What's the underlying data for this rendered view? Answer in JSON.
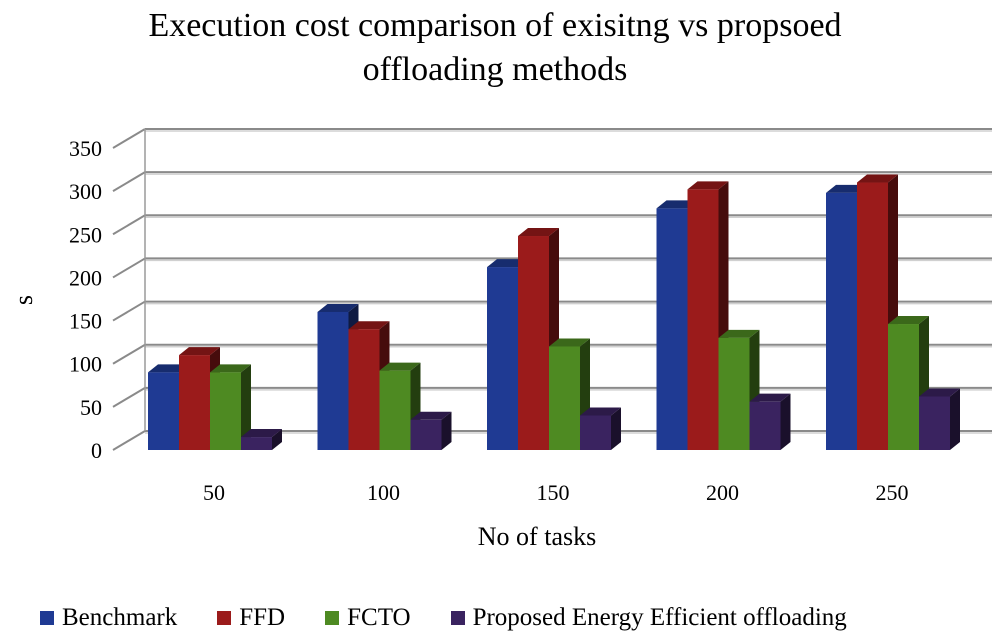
{
  "chart_data": {
    "type": "bar",
    "title_lines": [
      "Execution cost comparison of exisitng vs propsoed",
      "offloading methods"
    ],
    "xlabel": "No of tasks",
    "ylabel": "s",
    "categories": [
      "50",
      "100",
      "150",
      "200",
      "250"
    ],
    "ylim": [
      0,
      350
    ],
    "yticks": [
      "0",
      "50",
      "100",
      "150",
      "200",
      "250",
      "300",
      "350"
    ],
    "grid": true,
    "style": "3d-clustered-column",
    "legend_position": "bottom",
    "series": [
      {
        "name": "Benchmark",
        "values": [
          90,
          160,
          212,
          280,
          298
        ],
        "color": "#1F3A93"
      },
      {
        "name": "FFD",
        "values": [
          110,
          140,
          248,
          302,
          310
        ],
        "color": "#9B1B1B"
      },
      {
        "name": "FCTO",
        "values": [
          90,
          92,
          120,
          130,
          146
        ],
        "color": "#4E8A22"
      },
      {
        "name": "Proposed Energy Efficient offloading",
        "values": [
          15,
          35,
          40,
          56,
          62
        ],
        "color": "#3A2360"
      }
    ]
  }
}
